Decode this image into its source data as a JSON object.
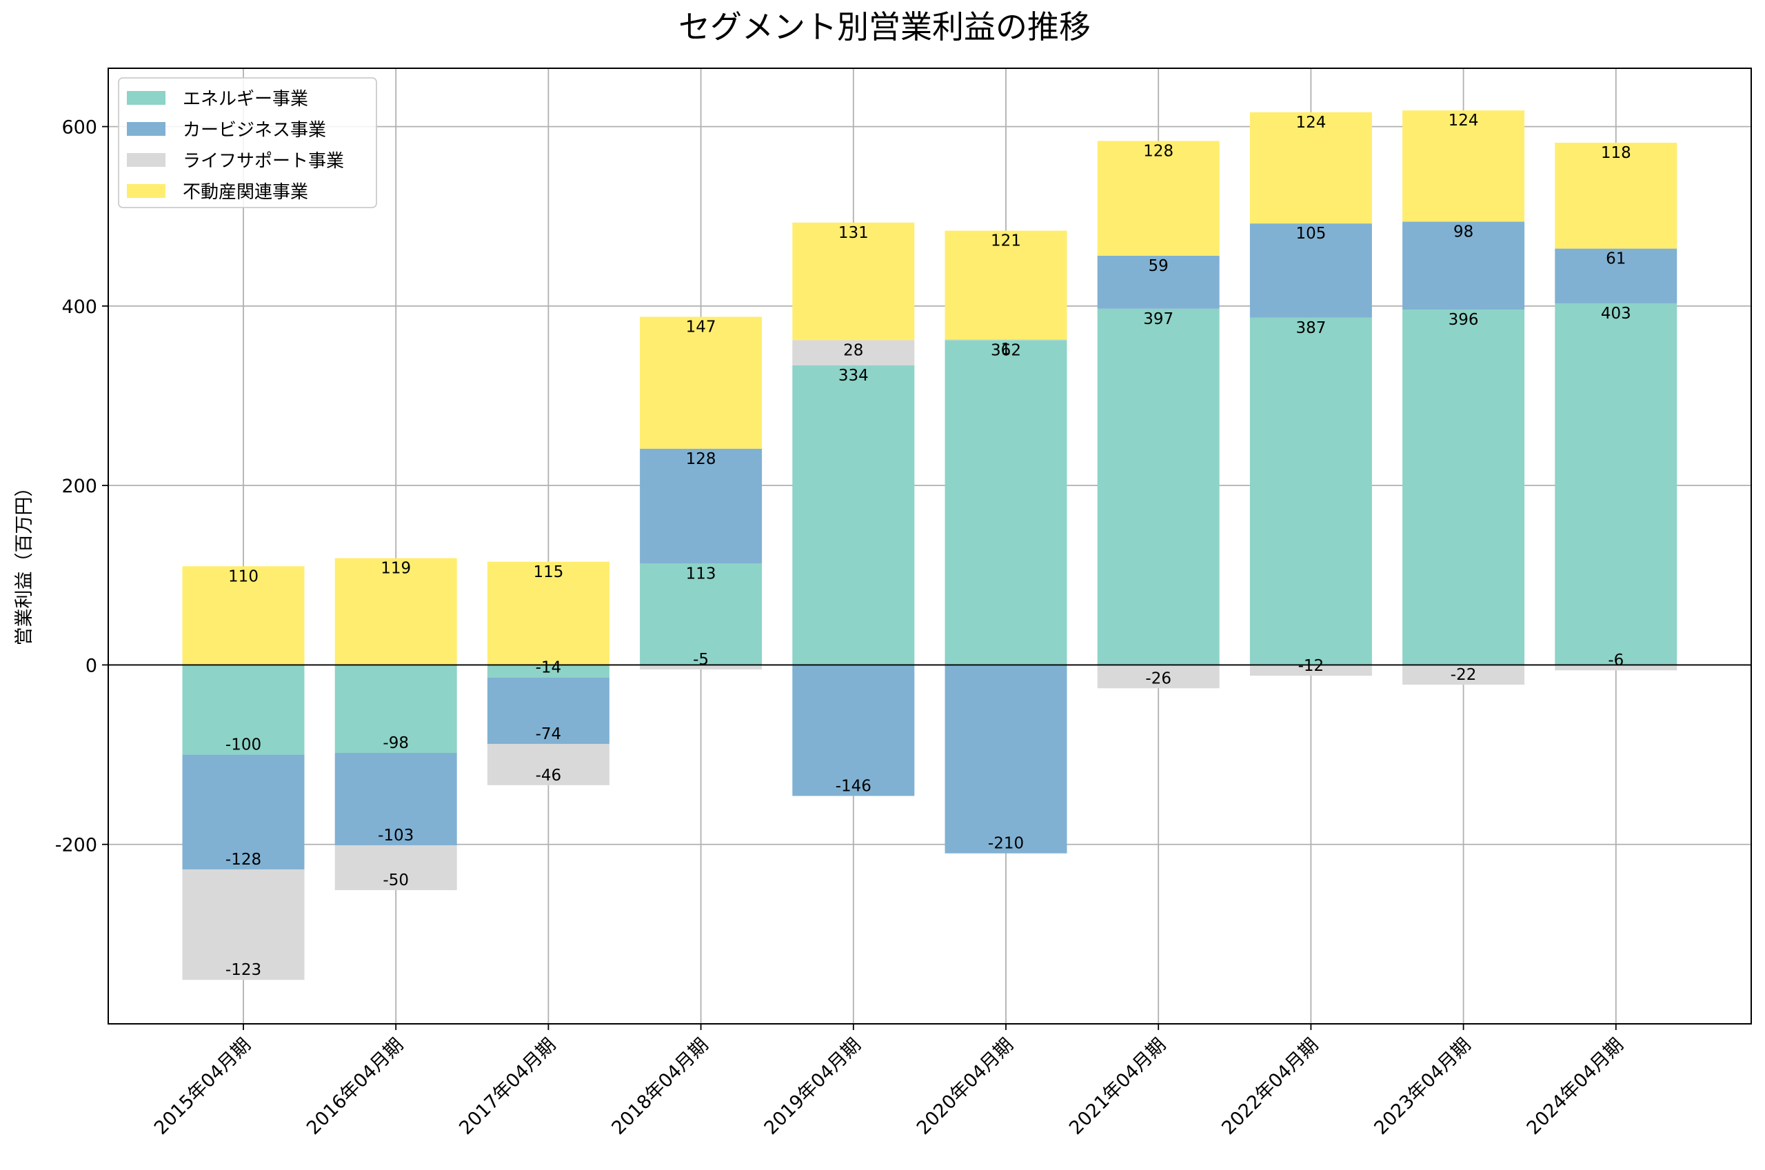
{
  "chart_data": {
    "type": "bar",
    "stacked": true,
    "title": "セグメント別営業利益の推移",
    "xlabel": "",
    "ylabel": "営業利益（百万円）",
    "ylim": [
      -400,
      665
    ],
    "yticks": [
      -200,
      0,
      200,
      400,
      600
    ],
    "grid": true,
    "legend_position": "top-left",
    "categories": [
      "2015年04月期",
      "2016年04月期",
      "2017年04月期",
      "2018年04月期",
      "2019年04月期",
      "2020年04月期",
      "2021年04月期",
      "2022年04月期",
      "2023年04月期",
      "2024年04月期"
    ],
    "series": [
      {
        "name": "エネルギー事業",
        "color": "#8dd3c7",
        "values": [
          -100,
          -98,
          -14,
          113,
          334,
          362,
          397,
          387,
          396,
          403
        ]
      },
      {
        "name": "カービジネス事業",
        "color": "#80b1d3",
        "values": [
          -128,
          -103,
          -74,
          128,
          -146,
          -210,
          59,
          105,
          98,
          61
        ]
      },
      {
        "name": "ライフサポート事業",
        "color": "#d9d9d9",
        "values": [
          -123,
          -50,
          -46,
          -5,
          28,
          1,
          -26,
          -12,
          -22,
          -6
        ]
      },
      {
        "name": "不動産関連事業",
        "color": "#ffed6f",
        "values": [
          110,
          119,
          115,
          147,
          131,
          121,
          128,
          124,
          124,
          118
        ]
      }
    ]
  }
}
